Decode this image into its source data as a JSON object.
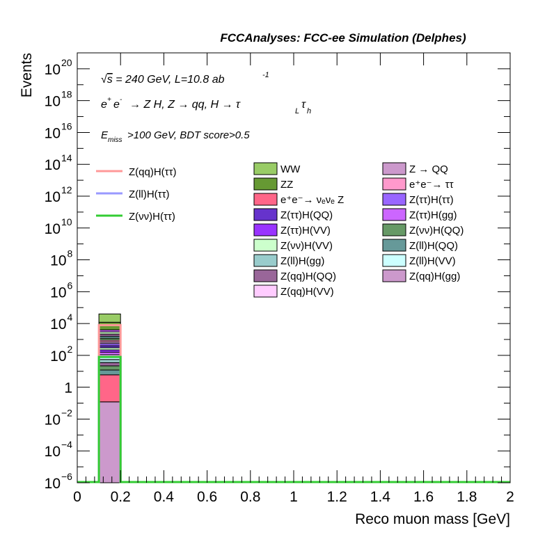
{
  "header": {
    "title": "FCCAnalyses: FCC-ee Simulation (Delphes)"
  },
  "annotations": {
    "energy_lumi": "√s = 240 GeV, L=10.8 ab⁻¹",
    "process": "e⁺e⁻ → Z H, Z → qq, H → τ_L τ_h",
    "selection": "E_miss>100 GeV, BDT score>0.5"
  },
  "chart_data": {
    "type": "bar",
    "xlabel": "Reco muon mass [GeV]",
    "ylabel": "Events",
    "xlim": [
      0,
      2
    ],
    "ylim": [
      1e-06,
      1e+21
    ],
    "yscale": "log",
    "x_ticks": [
      "0",
      "0.2",
      "0.4",
      "0.6",
      "0.8",
      "1",
      "1.2",
      "1.4",
      "1.6",
      "1.8",
      "2"
    ],
    "y_ticks": [
      {
        "mant": "10",
        "exp": "−6",
        "v": 1e-06
      },
      {
        "mant": "10",
        "exp": "−4",
        "v": 0.0001
      },
      {
        "mant": "10",
        "exp": "−2",
        "v": 0.01
      },
      {
        "mant": "1",
        "exp": "",
        "v": 1
      },
      {
        "mant": "10",
        "exp": "2",
        "v": 100.0
      },
      {
        "mant": "10",
        "exp": "4",
        "v": 10000.0
      },
      {
        "mant": "10",
        "exp": "6",
        "v": 1000000.0
      },
      {
        "mant": "10",
        "exp": "8",
        "v": 100000000.0
      },
      {
        "mant": "10",
        "exp": "10",
        "v": 10000000000.0
      },
      {
        "mant": "10",
        "exp": "12",
        "v": 1000000000000.0
      },
      {
        "mant": "10",
        "exp": "14",
        "v": 100000000000000.0
      },
      {
        "mant": "10",
        "exp": "16",
        "v": 1e+16
      },
      {
        "mant": "10",
        "exp": "18",
        "v": 1e+18
      },
      {
        "mant": "10",
        "exp": "20",
        "v": 1e+20
      }
    ],
    "bin": [
      0.1,
      0.2
    ],
    "stack": [
      {
        "name": "Z(qq)H(gg)",
        "color": "#cc99cc",
        "bottom": 1e-06,
        "top": 0.12
      },
      {
        "name": "e⁺e⁻→ νₑνₑ Z",
        "color": "#ff6688",
        "bottom": 0.12,
        "top": 6
      },
      {
        "name": "Z(ll)H(QQ)",
        "color": "#669999",
        "bottom": 6,
        "top": 12
      },
      {
        "name": "Z(νν)H(QQ)",
        "color": "#669966",
        "bottom": 12,
        "top": 22
      },
      {
        "name": "Z(qq)H(QQ)",
        "color": "#996699",
        "bottom": 22,
        "top": 35
      },
      {
        "name": "Z(ll)H(gg)",
        "color": "#99cccc",
        "bottom": 35,
        "top": 55
      },
      {
        "name": "Z(ll)H(VV)",
        "color": "#ccffff",
        "bottom": 55,
        "top": 80
      },
      {
        "name": "Z(qq)H(VV)",
        "color": "#ffccff",
        "bottom": 80,
        "top": 110
      },
      {
        "name": "Z(ττ)H(gg)",
        "color": "#cc66ff",
        "bottom": 110,
        "top": 160
      },
      {
        "name": "Z(ττ)H(VV)",
        "color": "#9933ff",
        "bottom": 160,
        "top": 220
      },
      {
        "name": "Z(νν)H(VV)",
        "color": "#ccffcc",
        "bottom": 220,
        "top": 300
      },
      {
        "name": "Z(ττ)H(QQ)",
        "color": "#6633cc",
        "bottom": 300,
        "top": 400
      },
      {
        "name": "Z(ττ)H(ττ)",
        "color": "#9966ff",
        "bottom": 400,
        "top": 550
      },
      {
        "name": "Z → QQ",
        "color": "#cc99cc",
        "bottom": 550,
        "top": 700
      },
      {
        "name": "e⁺e⁻→ ττ",
        "color": "#ff99cc",
        "bottom": 700,
        "top": 900
      },
      {
        "name": "Z(νν)H(ττ)",
        "color": "#669966",
        "bottom": 900,
        "top": 1200
      },
      {
        "name": "Z(ll)H(ττ)",
        "color": "#669999",
        "bottom": 1200,
        "top": 1600
      },
      {
        "name": "Z(qq)H(QQ)",
        "color": "#996699",
        "bottom": 1600,
        "top": 2200
      },
      {
        "name": "Z(νν)H(VV)",
        "color": "#ccffcc",
        "bottom": 2200,
        "top": 3000
      },
      {
        "name": "Z(ττ)H(gg)",
        "color": "#cc66ff",
        "bottom": 3000,
        "top": 4000
      },
      {
        "name": "ZZ",
        "color": "#669933",
        "bottom": 4000,
        "top": 12000
      },
      {
        "name": "WW",
        "color": "#99cc66",
        "bottom": 12000,
        "top": 40000
      }
    ],
    "signals": [
      {
        "name": "Z(qq)H(ττ)",
        "color": "#ff9999",
        "value": 8000
      },
      {
        "name": "Z(ll)H(ττ)",
        "color": "#9999ff",
        "value": 80
      },
      {
        "name": "Z(νν)H(ττ)",
        "color": "#33cc33",
        "value": 80
      }
    ],
    "legend_signals": [
      "Z(qq)H(ττ)",
      "Z(ll)H(ττ)",
      "Z(νν)H(ττ)"
    ],
    "legend_bkg_col1": [
      {
        "label": "WW",
        "color": "#99cc66"
      },
      {
        "label": "ZZ",
        "color": "#669933"
      },
      {
        "label": "e⁺e⁻→ νₑνₑ Z",
        "color": "#ff6688"
      },
      {
        "label": "Z(ττ)H(QQ)",
        "color": "#6633cc"
      },
      {
        "label": "Z(ττ)H(VV)",
        "color": "#9933ff"
      },
      {
        "label": "Z(νν)H(VV)",
        "color": "#ccffcc"
      },
      {
        "label": "Z(ll)H(gg)",
        "color": "#99cccc"
      },
      {
        "label": "Z(qq)H(QQ)",
        "color": "#996699"
      },
      {
        "label": "Z(qq)H(VV)",
        "color": "#ffccff"
      }
    ],
    "legend_bkg_col2": [
      {
        "label": "Z → QQ",
        "color": "#cc99cc"
      },
      {
        "label": "e⁺e⁻→ ττ",
        "color": "#ff99cc"
      },
      {
        "label": "Z(ττ)H(ττ)",
        "color": "#9966ff"
      },
      {
        "label": "Z(ττ)H(gg)",
        "color": "#cc66ff"
      },
      {
        "label": "Z(νν)H(QQ)",
        "color": "#669966"
      },
      {
        "label": "Z(ll)H(QQ)",
        "color": "#669999"
      },
      {
        "label": "Z(ll)H(VV)",
        "color": "#ccffff"
      },
      {
        "label": "Z(qq)H(gg)",
        "color": "#cc99cc"
      }
    ]
  }
}
